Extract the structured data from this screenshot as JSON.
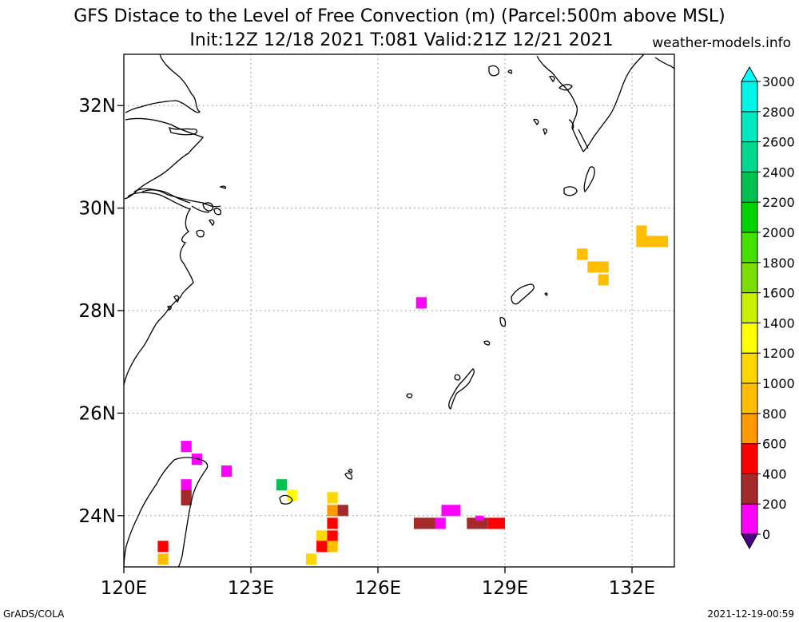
{
  "title_line1": "GFS Distace to the Level of Free Convection (m) (Parcel:500m above MSL)",
  "title_line2": "Init:12Z 12/18 2021 T:081 Valid:21Z 12/21 2021",
  "site": "weather-models.info",
  "footer_left": "GrADS/COLA",
  "footer_right": "2021-12-19-00:59",
  "map": {
    "lon_range": [
      120,
      133
    ],
    "lat_range": [
      23,
      33
    ],
    "lon_ticks": [
      {
        "value": 120,
        "label": "120E"
      },
      {
        "value": 123,
        "label": "123E"
      },
      {
        "value": 126,
        "label": "126E"
      },
      {
        "value": 129,
        "label": "129E"
      },
      {
        "value": 132,
        "label": "132E"
      }
    ],
    "lat_ticks": [
      {
        "value": 24,
        "label": "24N"
      },
      {
        "value": 26,
        "label": "26N"
      },
      {
        "value": 28,
        "label": "28N"
      },
      {
        "value": 30,
        "label": "30N"
      },
      {
        "value": 32,
        "label": "32N"
      }
    ],
    "grid": true,
    "grid_lons": [
      120,
      123,
      126,
      129,
      132
    ],
    "grid_lats": [
      24,
      26,
      28,
      30,
      32
    ]
  },
  "colorbar": {
    "levels": [
      "0",
      "200",
      "400",
      "600",
      "800",
      "1000",
      "1200",
      "1400",
      "1600",
      "1800",
      "2000",
      "2200",
      "2400",
      "2600",
      "2800",
      "3000"
    ],
    "colors": [
      "#4b0082",
      "#ff00ff",
      "#a52a2a",
      "#ff0000",
      "#ff9900",
      "#ffbf00",
      "#ffd700",
      "#ffff00",
      "#c8f000",
      "#7cdd00",
      "#44e000",
      "#00d200",
      "#00c050",
      "#00d890",
      "#00e8c0",
      "#00f5e8",
      "#00ffff"
    ]
  },
  "cells": [
    {
      "lon": 126.9,
      "lat": 28.15,
      "w": 0.25,
      "h": 0.22,
      "v": 100
    },
    {
      "lon": 121.35,
      "lat": 25.35,
      "w": 0.25,
      "h": 0.22,
      "v": 100
    },
    {
      "lon": 121.6,
      "lat": 25.1,
      "w": 0.25,
      "h": 0.22,
      "v": 100
    },
    {
      "lon": 122.3,
      "lat": 24.87,
      "w": 0.25,
      "h": 0.22,
      "v": 100
    },
    {
      "lon": 121.35,
      "lat": 24.6,
      "w": 0.25,
      "h": 0.22,
      "v": 100
    },
    {
      "lon": 121.35,
      "lat": 24.35,
      "w": 0.25,
      "h": 0.3,
      "v": 300
    },
    {
      "lon": 123.6,
      "lat": 24.6,
      "w": 0.25,
      "h": 0.22,
      "v": 2200
    },
    {
      "lon": 123.85,
      "lat": 24.4,
      "w": 0.25,
      "h": 0.22,
      "v": 1300
    },
    {
      "lon": 124.8,
      "lat": 24.35,
      "w": 0.25,
      "h": 0.22,
      "v": 1100
    },
    {
      "lon": 124.8,
      "lat": 24.1,
      "w": 0.25,
      "h": 0.22,
      "v": 700
    },
    {
      "lon": 125.05,
      "lat": 24.1,
      "w": 0.25,
      "h": 0.22,
      "v": 300
    },
    {
      "lon": 124.8,
      "lat": 23.85,
      "w": 0.25,
      "h": 0.22,
      "v": 500
    },
    {
      "lon": 124.55,
      "lat": 23.6,
      "w": 0.25,
      "h": 0.22,
      "v": 1100
    },
    {
      "lon": 124.8,
      "lat": 23.6,
      "w": 0.25,
      "h": 0.22,
      "v": 500
    },
    {
      "lon": 124.55,
      "lat": 23.4,
      "w": 0.25,
      "h": 0.22,
      "v": 500
    },
    {
      "lon": 124.8,
      "lat": 23.4,
      "w": 0.25,
      "h": 0.22,
      "v": 900
    },
    {
      "lon": 124.3,
      "lat": 23.15,
      "w": 0.25,
      "h": 0.22,
      "v": 1100
    },
    {
      "lon": 120.8,
      "lat": 23.4,
      "w": 0.25,
      "h": 0.22,
      "v": 500
    },
    {
      "lon": 120.8,
      "lat": 23.15,
      "w": 0.25,
      "h": 0.22,
      "v": 900
    },
    {
      "lon": 126.85,
      "lat": 23.85,
      "w": 0.5,
      "h": 0.22,
      "v": 300
    },
    {
      "lon": 127.35,
      "lat": 23.85,
      "w": 0.25,
      "h": 0.22,
      "v": 100
    },
    {
      "lon": 127.5,
      "lat": 24.1,
      "w": 0.45,
      "h": 0.22,
      "v": 100
    },
    {
      "lon": 128.1,
      "lat": 23.85,
      "w": 0.5,
      "h": 0.22,
      "v": 300
    },
    {
      "lon": 128.3,
      "lat": 23.95,
      "w": 0.2,
      "h": 0.1,
      "v": 100
    },
    {
      "lon": 128.6,
      "lat": 23.85,
      "w": 0.4,
      "h": 0.22,
      "v": 500
    },
    {
      "lon": 130.7,
      "lat": 29.1,
      "w": 0.25,
      "h": 0.22,
      "v": 900
    },
    {
      "lon": 130.95,
      "lat": 28.85,
      "w": 0.5,
      "h": 0.22,
      "v": 900
    },
    {
      "lon": 131.2,
      "lat": 28.6,
      "w": 0.25,
      "h": 0.22,
      "v": 900
    },
    {
      "lon": 132.1,
      "lat": 29.55,
      "w": 0.25,
      "h": 0.22,
      "v": 900
    },
    {
      "lon": 132.1,
      "lat": 29.35,
      "w": 0.75,
      "h": 0.22,
      "v": 900
    }
  ]
}
